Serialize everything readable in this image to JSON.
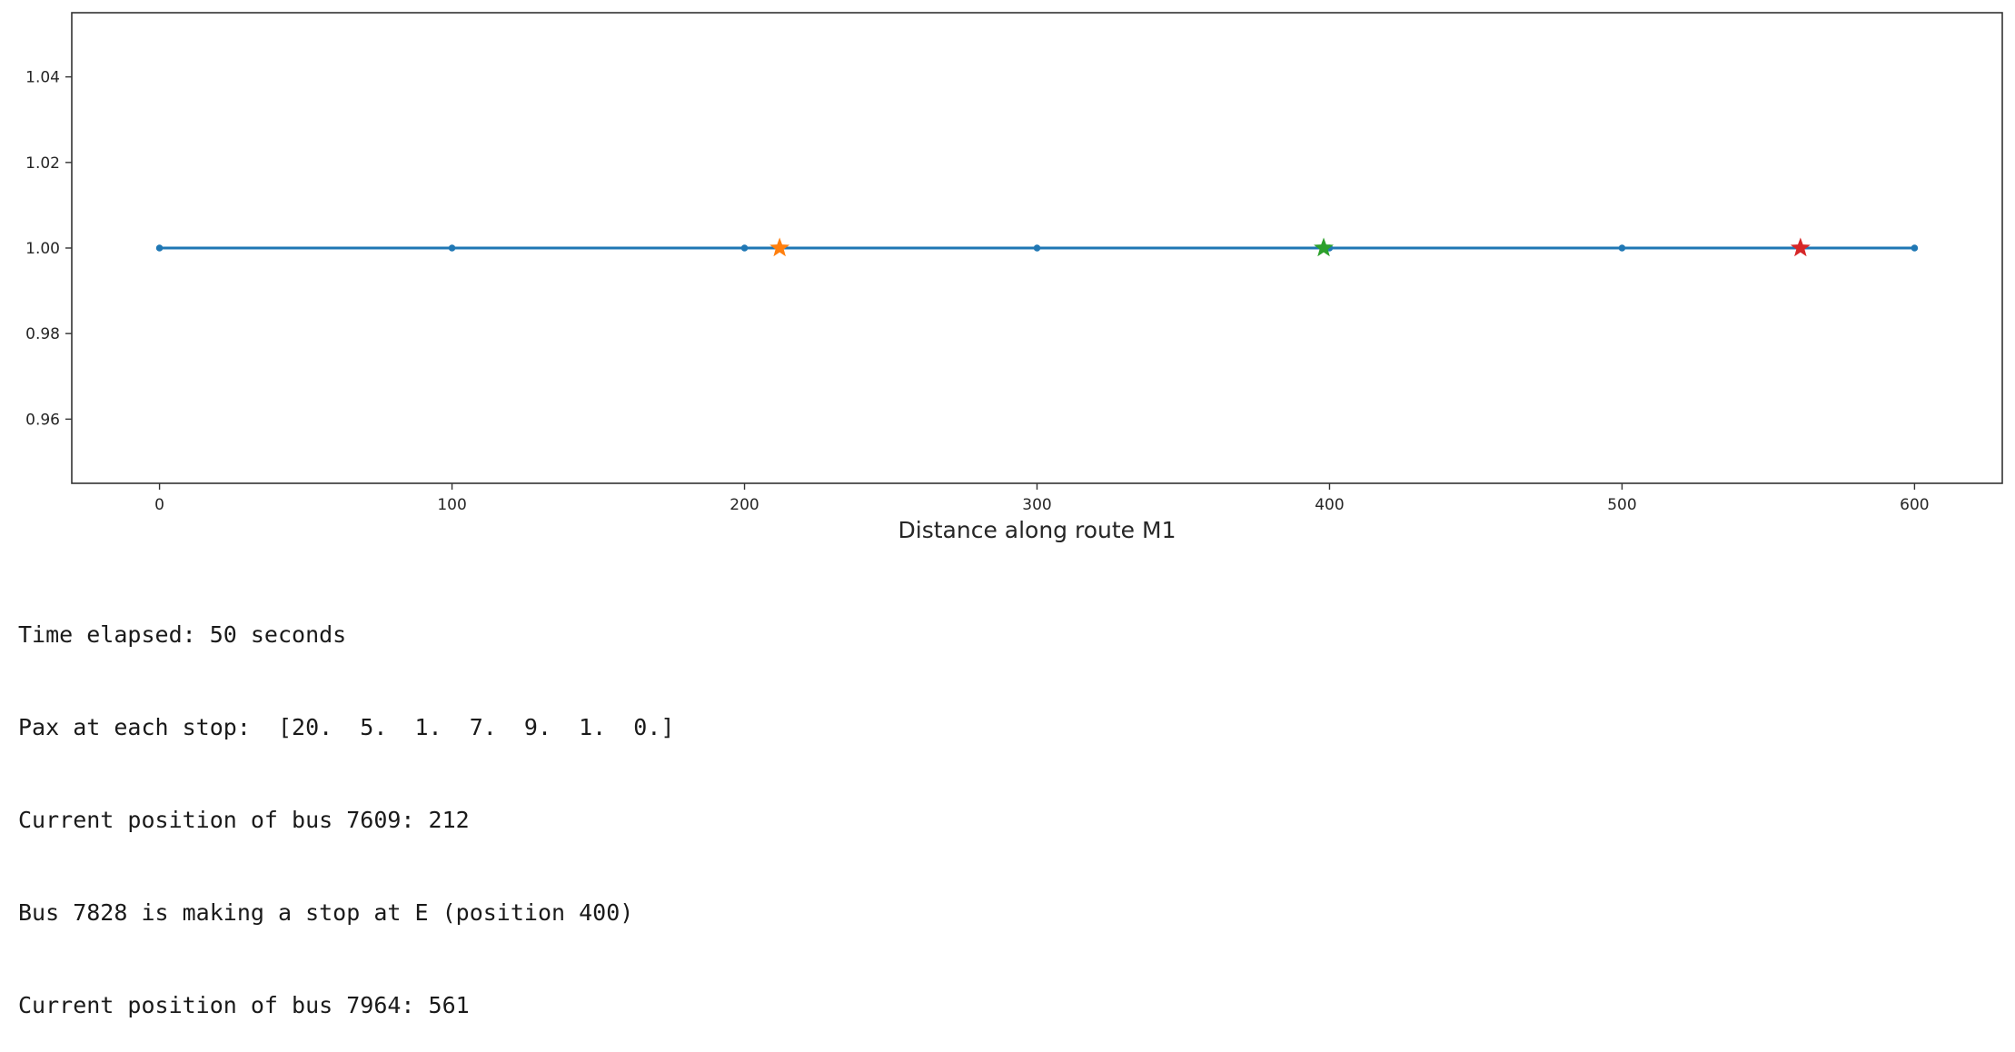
{
  "chart_data": {
    "type": "line",
    "xlabel": "Distance along route M1",
    "ylabel": "",
    "xlim": [
      -30,
      630
    ],
    "ylim": [
      0.945,
      1.055
    ],
    "xticks": [
      0,
      100,
      200,
      300,
      400,
      500,
      600
    ],
    "yticks": [
      0.96,
      0.98,
      1.0,
      1.02,
      1.04
    ],
    "xtick_labels": [
      "0",
      "100",
      "200",
      "300",
      "400",
      "500",
      "600"
    ],
    "ytick_labels": [
      "0.96",
      "0.98",
      "1.00",
      "1.02",
      "1.04"
    ],
    "grid": false,
    "series": [
      {
        "type": "line",
        "color": "#1f77b4",
        "marker": "dot",
        "x": [
          0,
          100,
          200,
          300,
          400,
          500,
          600
        ],
        "y": [
          1,
          1,
          1,
          1,
          1,
          1,
          1
        ]
      },
      {
        "type": "scatter",
        "color": "#ff7f0e",
        "marker": "star",
        "x": [
          212
        ],
        "y": [
          1
        ]
      },
      {
        "type": "scatter",
        "color": "#2ca02c",
        "marker": "star",
        "x": [
          398
        ],
        "y": [
          1
        ]
      },
      {
        "type": "scatter",
        "color": "#d62728",
        "marker": "star",
        "x": [
          561
        ],
        "y": [
          1
        ]
      }
    ]
  },
  "output": {
    "lines": [
      "Time elapsed: 50 seconds",
      "Pax at each stop:  [20.  5.  1.  7.  9.  1.  0.]",
      "Current position of bus 7609: 212",
      "Bus 7828 is making a stop at E (position 400)",
      "Current position of bus 7964: 561"
    ]
  }
}
